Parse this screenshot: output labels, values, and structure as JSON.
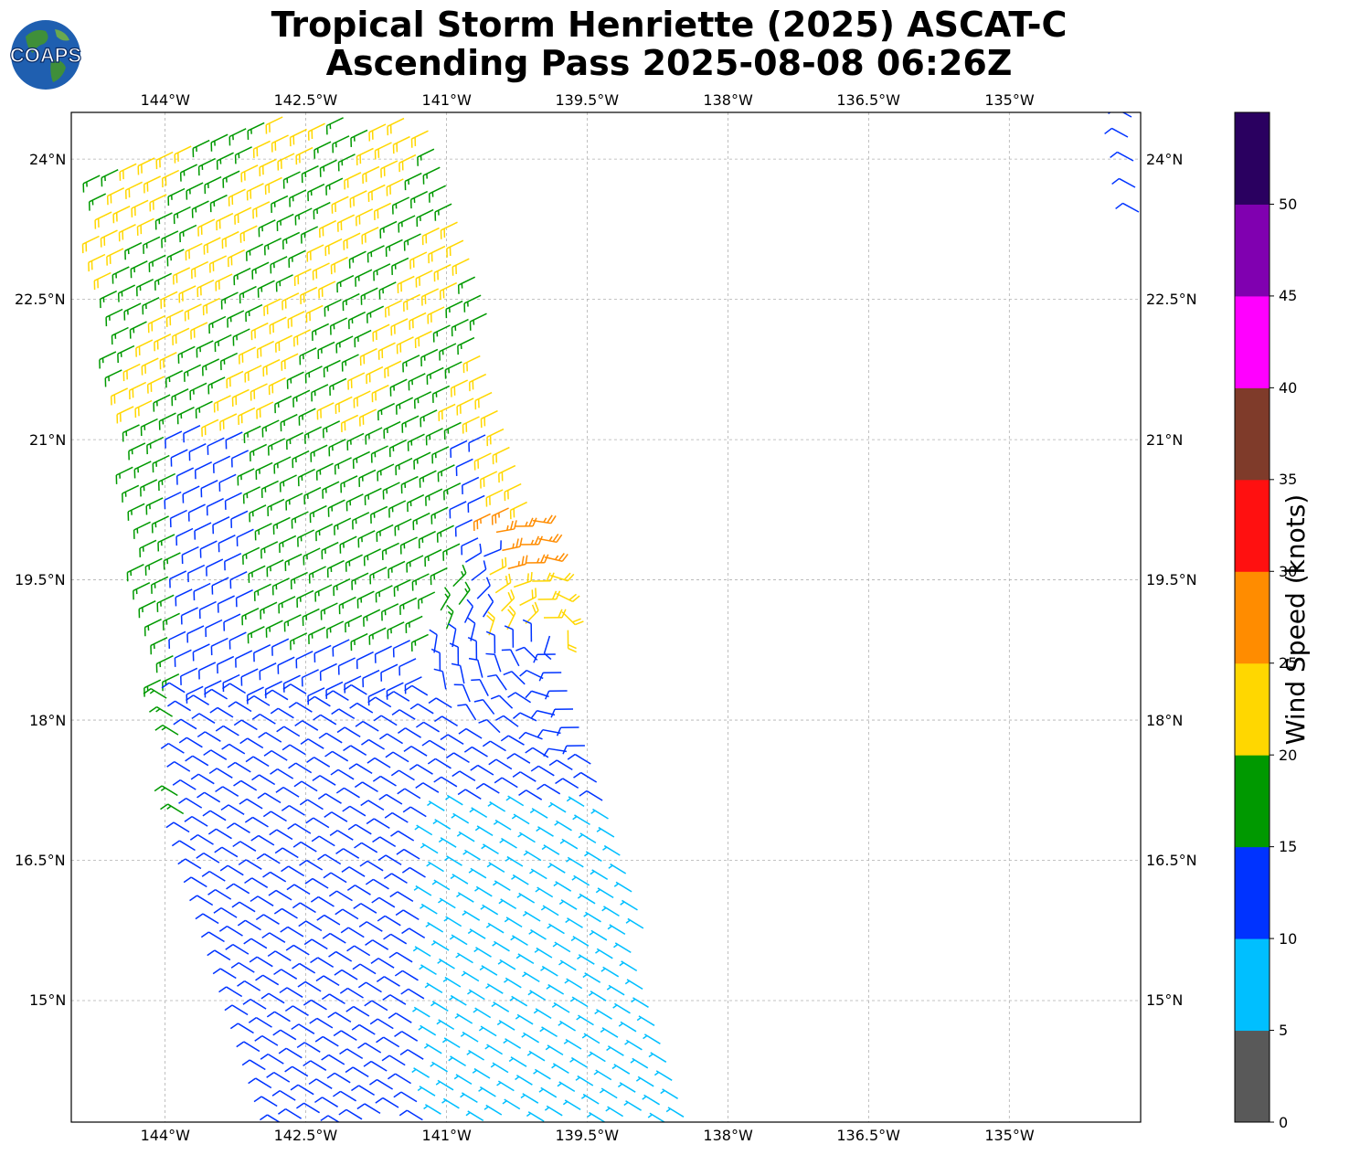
{
  "title_line1": "Tropical Storm Henriette (2025) ASCAT-C",
  "title_line2": "Ascending Pass 2025-08-08 06:26Z",
  "logo": {
    "text": "COAPS",
    "icon": "globe-icon"
  },
  "map": {
    "lon_ticks": [
      "144°W",
      "142.5°W",
      "141°W",
      "139.5°W",
      "138°W",
      "136.5°W",
      "135°W"
    ],
    "lat_ticks": [
      "24°N",
      "22.5°N",
      "21°N",
      "19.5°N",
      "18°N",
      "16.5°N",
      "15°N"
    ],
    "lon_range": [
      -145.0,
      -133.6
    ],
    "lat_range": [
      13.7,
      24.5
    ],
    "grid": true
  },
  "colorbar": {
    "label": "Wind Speed (knots)",
    "ticks": [
      "0",
      "5",
      "10",
      "15",
      "20",
      "25",
      "30",
      "35",
      "40",
      "45",
      "50"
    ],
    "bins": [
      {
        "min": 0,
        "max": 5,
        "color": "#595959"
      },
      {
        "min": 5,
        "max": 10,
        "color": "#00bfff"
      },
      {
        "min": 10,
        "max": 15,
        "color": "#0033ff"
      },
      {
        "min": 15,
        "max": 20,
        "color": "#009900"
      },
      {
        "min": 20,
        "max": 25,
        "color": "#ffd700"
      },
      {
        "min": 25,
        "max": 30,
        "color": "#ff8c00"
      },
      {
        "min": 30,
        "max": 35,
        "color": "#ff1010"
      },
      {
        "min": 35,
        "max": 40,
        "color": "#7f3b2a"
      },
      {
        "min": 40,
        "max": 45,
        "color": "#ff00ff"
      },
      {
        "min": 45,
        "max": 50,
        "color": "#8000b0"
      },
      {
        "min": 50,
        "max": 55,
        "color": "#2a0060"
      }
    ]
  }
}
